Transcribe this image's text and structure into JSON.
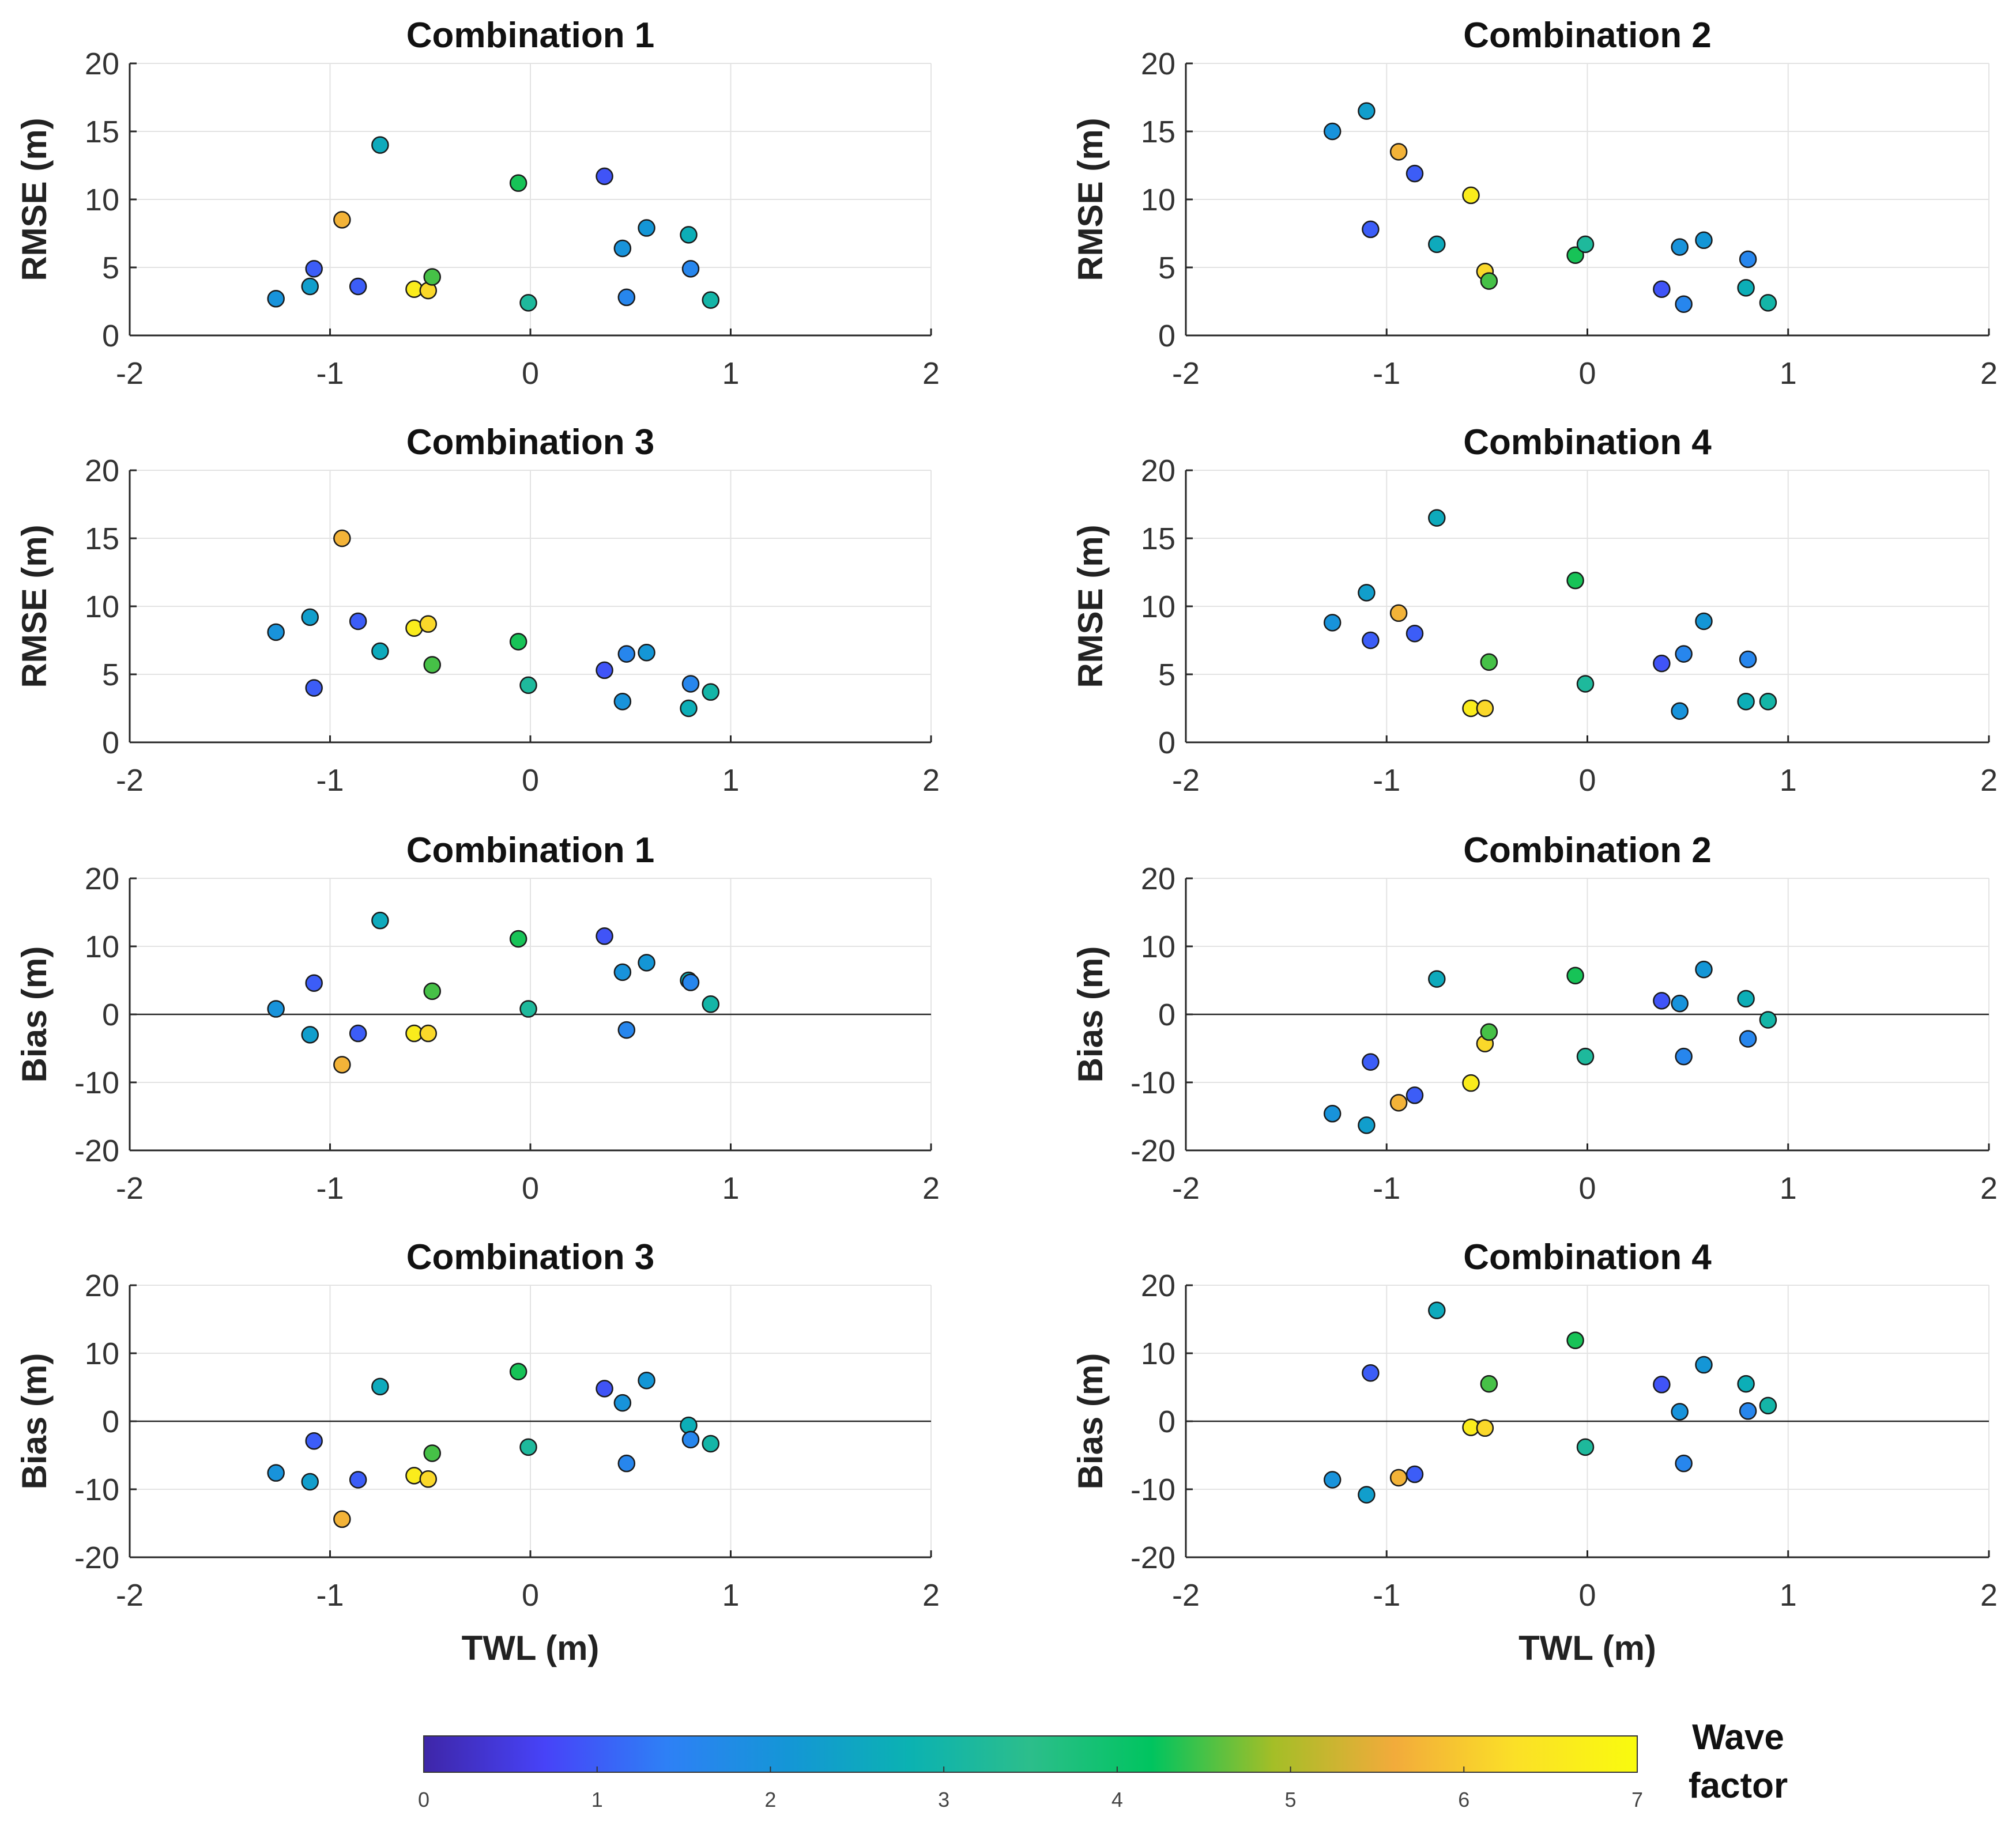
{
  "chart_data": {
    "type": "scatter",
    "x_axis": {
      "label": "TWL (m)",
      "range": [
        -2,
        2
      ],
      "ticks": [
        -2,
        -1,
        0,
        1,
        2
      ]
    },
    "twl": [
      -1.27,
      -1.1,
      -1.08,
      -0.94,
      -0.86,
      -0.75,
      -0.58,
      -0.51,
      -0.49,
      -0.06,
      -0.01,
      0.37,
      0.46,
      0.48,
      0.58,
      0.79,
      0.8,
      0.9
    ],
    "wave_factor": [
      2.0,
      2.3,
      1.0,
      5.7,
      1.0,
      2.6,
      6.6,
      6.2,
      4.5,
      4.3,
      3.2,
      0.9,
      2.0,
      1.6,
      2.1,
      2.7,
      1.6,
      3.0
    ],
    "panels": [
      {
        "title": "Combination 1",
        "ylabel": "RMSE (m)",
        "ylim": [
          0,
          20
        ],
        "yticks": [
          0,
          5,
          10,
          15,
          20
        ],
        "zero_line": false,
        "values": [
          2.7,
          3.6,
          4.9,
          8.5,
          3.6,
          14.0,
          3.4,
          3.3,
          4.3,
          11.2,
          2.4,
          11.7,
          6.4,
          2.8,
          7.9,
          7.4,
          4.9,
          2.6
        ]
      },
      {
        "title": "Combination 2",
        "ylabel": "RMSE (m)",
        "ylim": [
          0,
          20
        ],
        "yticks": [
          0,
          5,
          10,
          15,
          20
        ],
        "zero_line": false,
        "values": [
          15.0,
          16.5,
          7.8,
          13.5,
          11.9,
          6.7,
          10.3,
          4.7,
          4.0,
          5.9,
          6.7,
          3.4,
          6.5,
          2.3,
          7.0,
          3.5,
          5.6,
          2.4
        ]
      },
      {
        "title": "Combination 3",
        "ylabel": "RMSE (m)",
        "ylim": [
          0,
          20
        ],
        "yticks": [
          0,
          5,
          10,
          15,
          20
        ],
        "zero_line": false,
        "values": [
          8.1,
          9.2,
          4.0,
          15.0,
          8.9,
          6.7,
          8.4,
          8.7,
          5.7,
          7.4,
          4.2,
          5.3,
          3.0,
          6.5,
          6.6,
          2.5,
          4.3,
          3.7
        ]
      },
      {
        "title": "Combination 4",
        "ylabel": "RMSE (m)",
        "ylim": [
          0,
          20
        ],
        "yticks": [
          0,
          5,
          10,
          15,
          20
        ],
        "zero_line": false,
        "values": [
          8.8,
          11.0,
          7.5,
          9.5,
          8.0,
          16.5,
          2.5,
          2.5,
          5.9,
          11.9,
          4.3,
          5.8,
          2.3,
          6.5,
          8.9,
          3.0,
          6.1,
          3.0
        ]
      },
      {
        "title": "Combination 1",
        "ylabel": "Bias (m)",
        "ylim": [
          -20,
          20
        ],
        "yticks": [
          -20,
          -10,
          0,
          10,
          20
        ],
        "zero_line": true,
        "values": [
          0.8,
          -3.0,
          4.6,
          -7.4,
          -2.8,
          13.8,
          -2.8,
          -2.8,
          3.4,
          11.1,
          0.8,
          11.5,
          6.2,
          -2.3,
          7.6,
          5.0,
          4.7,
          1.5
        ]
      },
      {
        "title": "Combination 2",
        "ylabel": "Bias (m)",
        "ylim": [
          -20,
          20
        ],
        "yticks": [
          -20,
          -10,
          0,
          10,
          20
        ],
        "zero_line": true,
        "values": [
          -14.6,
          -16.3,
          -7.0,
          -13.0,
          -11.9,
          5.2,
          -10.1,
          -4.3,
          -2.6,
          5.7,
          -6.2,
          2.0,
          1.6,
          -6.2,
          6.6,
          2.3,
          -3.6,
          -0.8
        ]
      },
      {
        "title": "Combination 3",
        "ylabel": "Bias (m)",
        "ylim": [
          -20,
          20
        ],
        "yticks": [
          -20,
          -10,
          0,
          10,
          20
        ],
        "zero_line": true,
        "values": [
          -7.6,
          -8.9,
          -2.9,
          -14.4,
          -8.6,
          5.1,
          -8.0,
          -8.5,
          -4.7,
          7.3,
          -3.8,
          4.8,
          2.7,
          -6.2,
          6.0,
          -0.6,
          -2.7,
          -3.3
        ]
      },
      {
        "title": "Combination 4",
        "ylabel": "Bias (m)",
        "ylim": [
          -20,
          20
        ],
        "yticks": [
          -20,
          -10,
          0,
          10,
          20
        ],
        "zero_line": true,
        "values": [
          -8.6,
          -10.8,
          7.1,
          -8.3,
          -7.8,
          16.3,
          -0.9,
          -1.0,
          5.5,
          11.9,
          -3.8,
          5.4,
          1.4,
          -6.2,
          8.3,
          5.5,
          1.5,
          2.3
        ]
      }
    ],
    "colorbar": {
      "label": "Wave factor",
      "range": [
        0,
        7
      ],
      "ticks": [
        0,
        1,
        2,
        3,
        4,
        5,
        6,
        7
      ],
      "colormap": [
        "#3e26a8",
        "#4743f8",
        "#2e80f6",
        "#1496d6",
        "#0bb2b2",
        "#2cbe8b",
        "#00c45f",
        "#a4be27",
        "#f2ab3b",
        "#fbe027",
        "#f9fb0e"
      ]
    },
    "colors": {
      "grid": "#e3e3e3",
      "axis": "#262626",
      "marker_edge": "#1a1a1a",
      "zero_line": "#262626"
    }
  }
}
